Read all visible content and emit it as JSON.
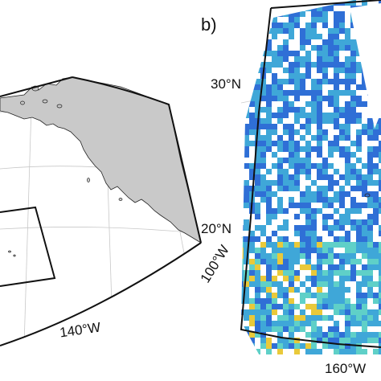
{
  "panel_a": {
    "lon_labels": [
      "100°W",
      "140°W"
    ]
  },
  "panel_b": {
    "panel_label": "b)",
    "lat_labels": [
      "30°N",
      "20°N"
    ],
    "lon_labels": [
      "160°W"
    ]
  },
  "colors": {
    "land": "#c9c9c9",
    "frame": "#111111",
    "graticule": "#c8c8c8",
    "ocean": "#ffffff",
    "data_low": "#2f6fd6",
    "data_mid": "#3fa7d8",
    "data_cyan": "#5fd0c8",
    "data_high": "#e9c93a",
    "data_missing": "#ffffff"
  }
}
